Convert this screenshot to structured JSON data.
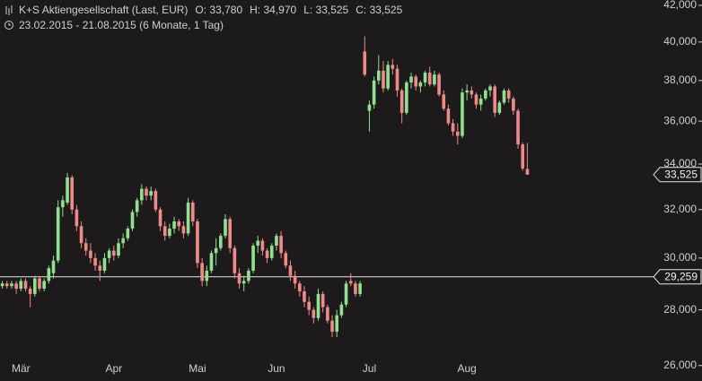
{
  "chart_data": {
    "type": "candlestick",
    "title": "K+S Aktiengesellschaft (Last, EUR)",
    "quote": [
      "O: 33,780",
      "H: 34,970",
      "L: 33,525",
      "C: 33,525"
    ],
    "subtitle": "23.02.2015 - 21.08.2015 (6 Monate, 1 Tag)",
    "log_scale": true,
    "ylim": [
      25.47,
      42.3
    ],
    "yticks": [
      {
        "value": 26,
        "label": "26,000"
      },
      {
        "value": 28,
        "label": "28,000"
      },
      {
        "value": 30,
        "label": "30,000"
      },
      {
        "value": 32,
        "label": "32,000"
      },
      {
        "value": 34,
        "label": "34,000"
      },
      {
        "value": 36,
        "label": "36,000"
      },
      {
        "value": 38,
        "label": "38,000"
      },
      {
        "value": 40,
        "label": "40,000"
      },
      {
        "value": 42,
        "label": "42,000"
      }
    ],
    "up_color": "#8fe08f",
    "down_color": "#f08a8a",
    "last_price": {
      "value": 33.525,
      "label": "33,525"
    },
    "reference_line": {
      "value": 29.259,
      "label": "29,259"
    },
    "categories": [
      null,
      null,
      null,
      null,
      "Mär",
      null,
      null,
      null,
      null,
      null,
      null,
      null,
      null,
      null,
      null,
      null,
      null,
      null,
      null,
      null,
      null,
      null,
      null,
      null,
      "Apr",
      null,
      null,
      null,
      null,
      null,
      null,
      null,
      null,
      null,
      null,
      null,
      null,
      null,
      null,
      null,
      null,
      null,
      "Mai",
      null,
      null,
      null,
      null,
      null,
      null,
      null,
      null,
      null,
      null,
      null,
      null,
      null,
      null,
      null,
      null,
      "Jun",
      null,
      null,
      null,
      null,
      null,
      null,
      null,
      null,
      null,
      null,
      null,
      null,
      null,
      null,
      null,
      null,
      null,
      null,
      null,
      "Jul",
      null,
      null,
      null,
      null,
      null,
      null,
      null,
      null,
      null,
      null,
      null,
      null,
      null,
      null,
      null,
      null,
      null,
      null,
      null,
      null,
      "Aug",
      null,
      null,
      null,
      null,
      null,
      null,
      null,
      null,
      null,
      null,
      null,
      null,
      null
    ],
    "ohlc": [
      [
        28.9,
        29.1,
        28.8,
        29.0
      ],
      [
        29.0,
        29.1,
        28.8,
        28.9
      ],
      [
        28.9,
        29.1,
        28.8,
        29.0
      ],
      [
        29.0,
        29.1,
        28.6,
        28.8
      ],
      [
        28.8,
        29.2,
        28.7,
        29.1
      ],
      [
        29.1,
        29.2,
        28.7,
        28.8
      ],
      [
        28.8,
        28.9,
        28.1,
        28.6
      ],
      [
        28.6,
        29.3,
        28.5,
        29.2
      ],
      [
        29.2,
        29.3,
        28.7,
        28.8
      ],
      [
        28.8,
        29.2,
        28.7,
        29.1
      ],
      [
        29.1,
        29.7,
        29.0,
        29.6
      ],
      [
        29.4,
        30.1,
        29.2,
        29.9
      ],
      [
        29.9,
        32.4,
        29.8,
        32.1
      ],
      [
        32.1,
        32.6,
        31.7,
        32.4
      ],
      [
        32.3,
        33.6,
        32.2,
        33.4
      ],
      [
        33.4,
        33.5,
        31.8,
        32.0
      ],
      [
        32.0,
        32.2,
        31.1,
        31.3
      ],
      [
        31.3,
        31.5,
        30.4,
        30.6
      ],
      [
        30.6,
        30.8,
        30.1,
        30.3
      ],
      [
        30.3,
        30.6,
        29.8,
        30.0
      ],
      [
        30.0,
        30.2,
        29.5,
        29.7
      ],
      [
        29.7,
        29.9,
        29.1,
        29.5
      ],
      [
        29.5,
        30.2,
        29.4,
        30.0
      ],
      [
        30.0,
        30.4,
        29.8,
        30.3
      ],
      [
        30.3,
        30.5,
        29.9,
        30.1
      ],
      [
        30.1,
        30.8,
        30.0,
        30.6
      ],
      [
        30.6,
        31.0,
        30.4,
        30.8
      ],
      [
        30.8,
        31.3,
        30.7,
        31.2
      ],
      [
        31.2,
        32.0,
        31.1,
        31.9
      ],
      [
        31.9,
        32.5,
        31.7,
        32.4
      ],
      [
        32.4,
        33.1,
        32.2,
        32.9
      ],
      [
        32.9,
        33.0,
        32.4,
        32.6
      ],
      [
        32.6,
        33.0,
        32.4,
        32.8
      ],
      [
        32.8,
        32.9,
        31.9,
        32.0
      ],
      [
        32.0,
        32.1,
        31.1,
        31.3
      ],
      [
        31.3,
        31.5,
        30.7,
        30.9
      ],
      [
        30.9,
        31.4,
        30.8,
        31.2
      ],
      [
        31.2,
        31.7,
        31.0,
        31.5
      ],
      [
        31.5,
        31.6,
        31.1,
        31.3
      ],
      [
        31.3,
        31.5,
        30.8,
        31.0
      ],
      [
        31.0,
        32.5,
        30.9,
        32.3
      ],
      [
        32.3,
        32.4,
        31.3,
        31.5
      ],
      [
        31.5,
        31.6,
        29.6,
        29.8
      ],
      [
        29.8,
        30.0,
        28.9,
        29.1
      ],
      [
        29.1,
        29.7,
        28.9,
        29.5
      ],
      [
        29.5,
        30.3,
        29.4,
        30.2
      ],
      [
        30.2,
        30.8,
        29.7,
        30.4
      ],
      [
        30.4,
        31.0,
        30.3,
        30.9
      ],
      [
        30.9,
        31.8,
        30.8,
        31.6
      ],
      [
        31.6,
        31.7,
        30.2,
        30.4
      ],
      [
        30.4,
        30.5,
        29.2,
        29.4
      ],
      [
        29.4,
        29.6,
        28.8,
        29.0
      ],
      [
        29.0,
        29.3,
        28.7,
        29.1
      ],
      [
        29.1,
        29.6,
        29.0,
        29.5
      ],
      [
        29.5,
        30.6,
        29.4,
        30.5
      ],
      [
        30.5,
        30.9,
        30.2,
        30.7
      ],
      [
        30.7,
        30.8,
        30.1,
        30.3
      ],
      [
        30.3,
        30.4,
        29.8,
        30.0
      ],
      [
        30.0,
        30.6,
        29.9,
        30.5
      ],
      [
        30.5,
        31.0,
        30.3,
        30.9
      ],
      [
        30.9,
        31.1,
        30.0,
        30.2
      ],
      [
        30.2,
        30.3,
        29.6,
        29.7
      ],
      [
        29.7,
        29.9,
        29.1,
        29.3
      ],
      [
        29.3,
        29.5,
        28.8,
        29.0
      ],
      [
        29.0,
        29.1,
        28.5,
        28.7
      ],
      [
        28.7,
        28.9,
        28.1,
        28.3
      ],
      [
        28.3,
        28.5,
        27.8,
        28.0
      ],
      [
        28.0,
        28.1,
        27.5,
        27.7
      ],
      [
        27.7,
        28.8,
        27.6,
        28.6
      ],
      [
        28.6,
        28.7,
        27.9,
        28.1
      ],
      [
        28.1,
        28.2,
        27.5,
        27.6
      ],
      [
        27.6,
        27.8,
        27.0,
        27.2
      ],
      [
        27.2,
        28.0,
        27.0,
        27.8
      ],
      [
        27.8,
        28.3,
        27.7,
        28.2
      ],
      [
        28.2,
        29.1,
        28.1,
        29.0
      ],
      [
        29.1,
        29.4,
        28.9,
        29.0
      ],
      [
        29.0,
        29.1,
        28.5,
        28.6
      ],
      [
        28.6,
        29.1,
        28.5,
        29.0
      ],
      [
        39.5,
        40.3,
        38.2,
        38.3
      ],
      [
        36.5,
        37.0,
        35.5,
        36.8
      ],
      [
        36.8,
        38.2,
        36.6,
        38.0
      ],
      [
        38.0,
        39.3,
        37.8,
        38.5
      ],
      [
        38.5,
        39.0,
        37.4,
        37.6
      ],
      [
        37.6,
        39.0,
        37.5,
        38.8
      ],
      [
        38.8,
        39.1,
        38.3,
        38.6
      ],
      [
        38.6,
        38.8,
        37.2,
        37.5
      ],
      [
        37.5,
        37.6,
        35.9,
        36.4
      ],
      [
        36.4,
        38.0,
        36.3,
        37.9
      ],
      [
        37.9,
        38.4,
        37.6,
        38.2
      ],
      [
        38.2,
        38.3,
        37.5,
        37.7
      ],
      [
        37.7,
        38.0,
        37.4,
        37.9
      ],
      [
        37.9,
        38.5,
        37.7,
        38.4
      ],
      [
        38.4,
        38.7,
        37.7,
        37.8
      ],
      [
        37.8,
        38.5,
        37.7,
        38.3
      ],
      [
        38.3,
        38.4,
        37.2,
        37.3
      ],
      [
        37.3,
        37.5,
        36.5,
        36.6
      ],
      [
        36.6,
        36.8,
        35.8,
        35.9
      ],
      [
        35.9,
        36.1,
        35.3,
        35.5
      ],
      [
        35.5,
        35.9,
        34.9,
        35.3
      ],
      [
        35.3,
        37.6,
        35.2,
        37.4
      ],
      [
        37.4,
        37.8,
        37.0,
        37.5
      ],
      [
        37.5,
        37.7,
        37.1,
        37.3
      ],
      [
        37.3,
        37.4,
        36.6,
        36.8
      ],
      [
        36.8,
        37.3,
        36.5,
        37.1
      ],
      [
        37.1,
        37.6,
        37.0,
        37.5
      ],
      [
        37.5,
        37.8,
        37.2,
        37.7
      ],
      [
        37.7,
        37.8,
        36.2,
        36.4
      ],
      [
        36.4,
        37.0,
        36.3,
        36.9
      ],
      [
        36.9,
        37.6,
        36.8,
        37.5
      ],
      [
        37.5,
        37.6,
        36.9,
        37.1
      ],
      [
        37.1,
        37.2,
        36.3,
        36.5
      ],
      [
        36.5,
        36.6,
        34.7,
        34.9
      ],
      [
        34.9,
        35.0,
        33.7,
        33.8
      ],
      [
        33.78,
        34.97,
        33.525,
        33.525
      ]
    ]
  }
}
